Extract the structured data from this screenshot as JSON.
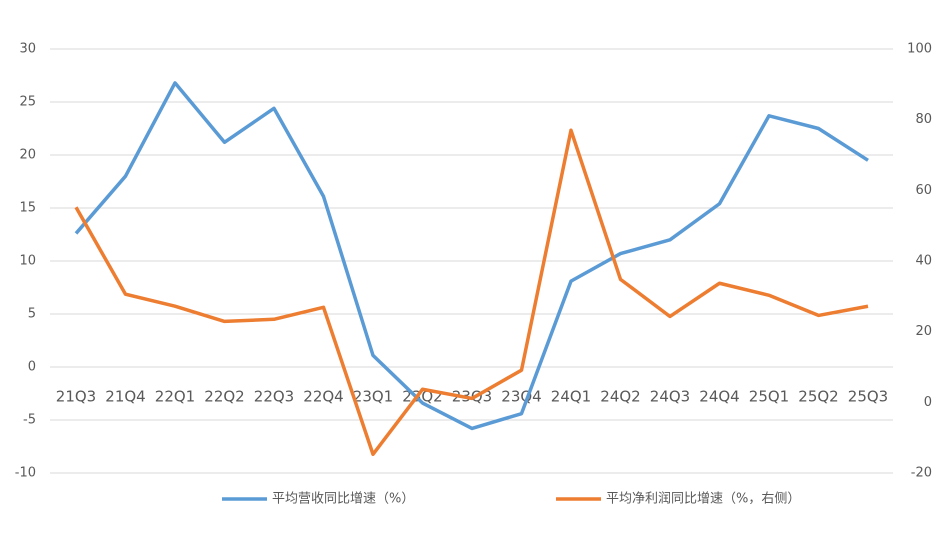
{
  "chart_data": {
    "type": "line",
    "categories": [
      "21Q3",
      "21Q4",
      "22Q1",
      "22Q2",
      "22Q3",
      "22Q4",
      "23Q1",
      "23Q2",
      "23Q3",
      "23Q4",
      "24Q1",
      "24Q2",
      "24Q3",
      "24Q4",
      "25Q1",
      "25Q2",
      "25Q3"
    ],
    "series": [
      {
        "name": "平均营收同比增速（%）",
        "color": "#5b9bd5",
        "axis": "y",
        "values": [
          12.6,
          18.0,
          26.8,
          21.2,
          24.4,
          16.1,
          1.1,
          -3.4,
          -5.8,
          -4.4,
          8.1,
          10.7,
          12.0,
          15.4,
          23.7,
          22.5,
          19.5
        ]
      },
      {
        "name": "平均净利润同比增速（%，右侧）",
        "color": "#ed7d31",
        "axis": "y2",
        "values": [
          55.2,
          30.6,
          27.2,
          22.9,
          23.5,
          26.9,
          -14.7,
          3.7,
          1.1,
          9.1,
          77.0,
          34.8,
          24.3,
          33.7,
          30.3,
          24.6,
          27.2
        ]
      }
    ],
    "ylim": [
      -10,
      30
    ],
    "yticks": [
      -10,
      -5,
      0,
      5,
      10,
      15,
      20,
      25,
      30
    ],
    "y2lim": [
      -20,
      100
    ],
    "y2ticks": [
      -20,
      0,
      20,
      40,
      60,
      80,
      100
    ],
    "grid": true,
    "legend": "bottom"
  }
}
